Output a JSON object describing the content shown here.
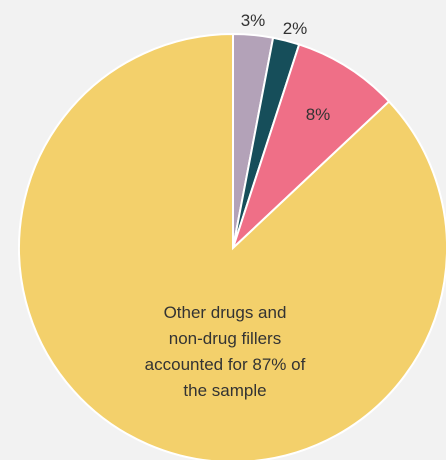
{
  "chart_data": {
    "type": "pie",
    "slices": [
      {
        "label": "3%",
        "value": 3,
        "color": "#b3a2b8"
      },
      {
        "label": "2%",
        "value": 2,
        "color": "#164e5a"
      },
      {
        "label": "8%",
        "value": 8,
        "color": "#ef6f87"
      },
      {
        "label": "",
        "value": 87,
        "color": "#f3d06b"
      }
    ],
    "center_text": [
      "Other drugs and",
      "non-drug fillers",
      "accounted for 87% of",
      "the sample"
    ],
    "title": "",
    "legend": "none"
  }
}
